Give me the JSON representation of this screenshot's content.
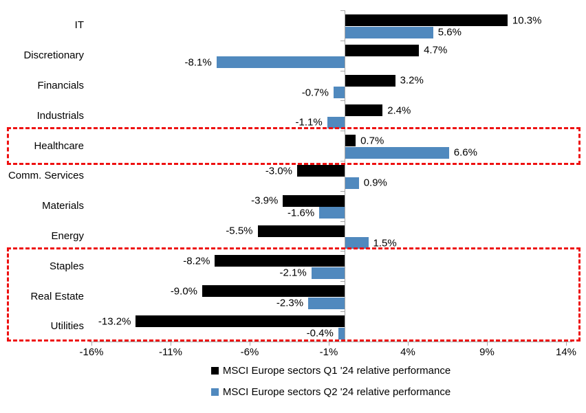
{
  "chart_data": {
    "type": "bar",
    "orientation": "horizontal",
    "title": "",
    "categories": [
      "IT",
      "Discretionary",
      "Financials",
      "Industrials",
      "Healthcare",
      "Comm. Services",
      "Materials",
      "Energy",
      "Staples",
      "Real Estate",
      "Utilities"
    ],
    "series": [
      {
        "name": "MSCI Europe sectors Q1 '24 relative performance",
        "color": "#000000",
        "values": [
          10.3,
          4.7,
          3.2,
          2.4,
          0.7,
          -3.0,
          -3.9,
          -5.5,
          -8.2,
          -9.0,
          -13.2
        ],
        "labels": [
          "10.3%",
          "4.7%",
          "3.2%",
          "2.4%",
          "0.7%",
          "-3.0%",
          "-3.9%",
          "-5.5%",
          "-8.2%",
          "-9.0%",
          "-13.2%"
        ]
      },
      {
        "name": "MSCI Europe sectors Q2 '24 relative performance",
        "color": "#5089BE",
        "values": [
          5.6,
          -8.1,
          -0.7,
          -1.1,
          6.6,
          0.9,
          -1.6,
          1.5,
          -2.1,
          -2.3,
          -0.4
        ],
        "labels": [
          "5.6%",
          "-8.1%",
          "-0.7%",
          "-1.1%",
          "6.6%",
          "0.9%",
          "-1.6%",
          "1.5%",
          "-2.1%",
          "-2.3%",
          "-0.4%"
        ]
      }
    ],
    "x_tick_values": [
      -16,
      -11,
      -6,
      -1,
      4,
      9,
      14
    ],
    "x_tick_labels": [
      "-16%",
      "-11%",
      "-6%",
      "-1%",
      "4%",
      "9%",
      "14%"
    ],
    "xlim": [
      -16.1,
      14.4
    ],
    "grid": false,
    "legend_position": "bottom",
    "highlight_boxes": [
      {
        "categories": [
          "Healthcare"
        ]
      },
      {
        "categories": [
          "Staples",
          "Real Estate",
          "Utilities"
        ]
      }
    ]
  },
  "colors": {
    "q1_bar": "#000000",
    "q2_bar": "#5089BE",
    "highlight_border": "#ee1111",
    "axis": "#a6a6a6",
    "text": "#000000",
    "background": "#ffffff"
  }
}
